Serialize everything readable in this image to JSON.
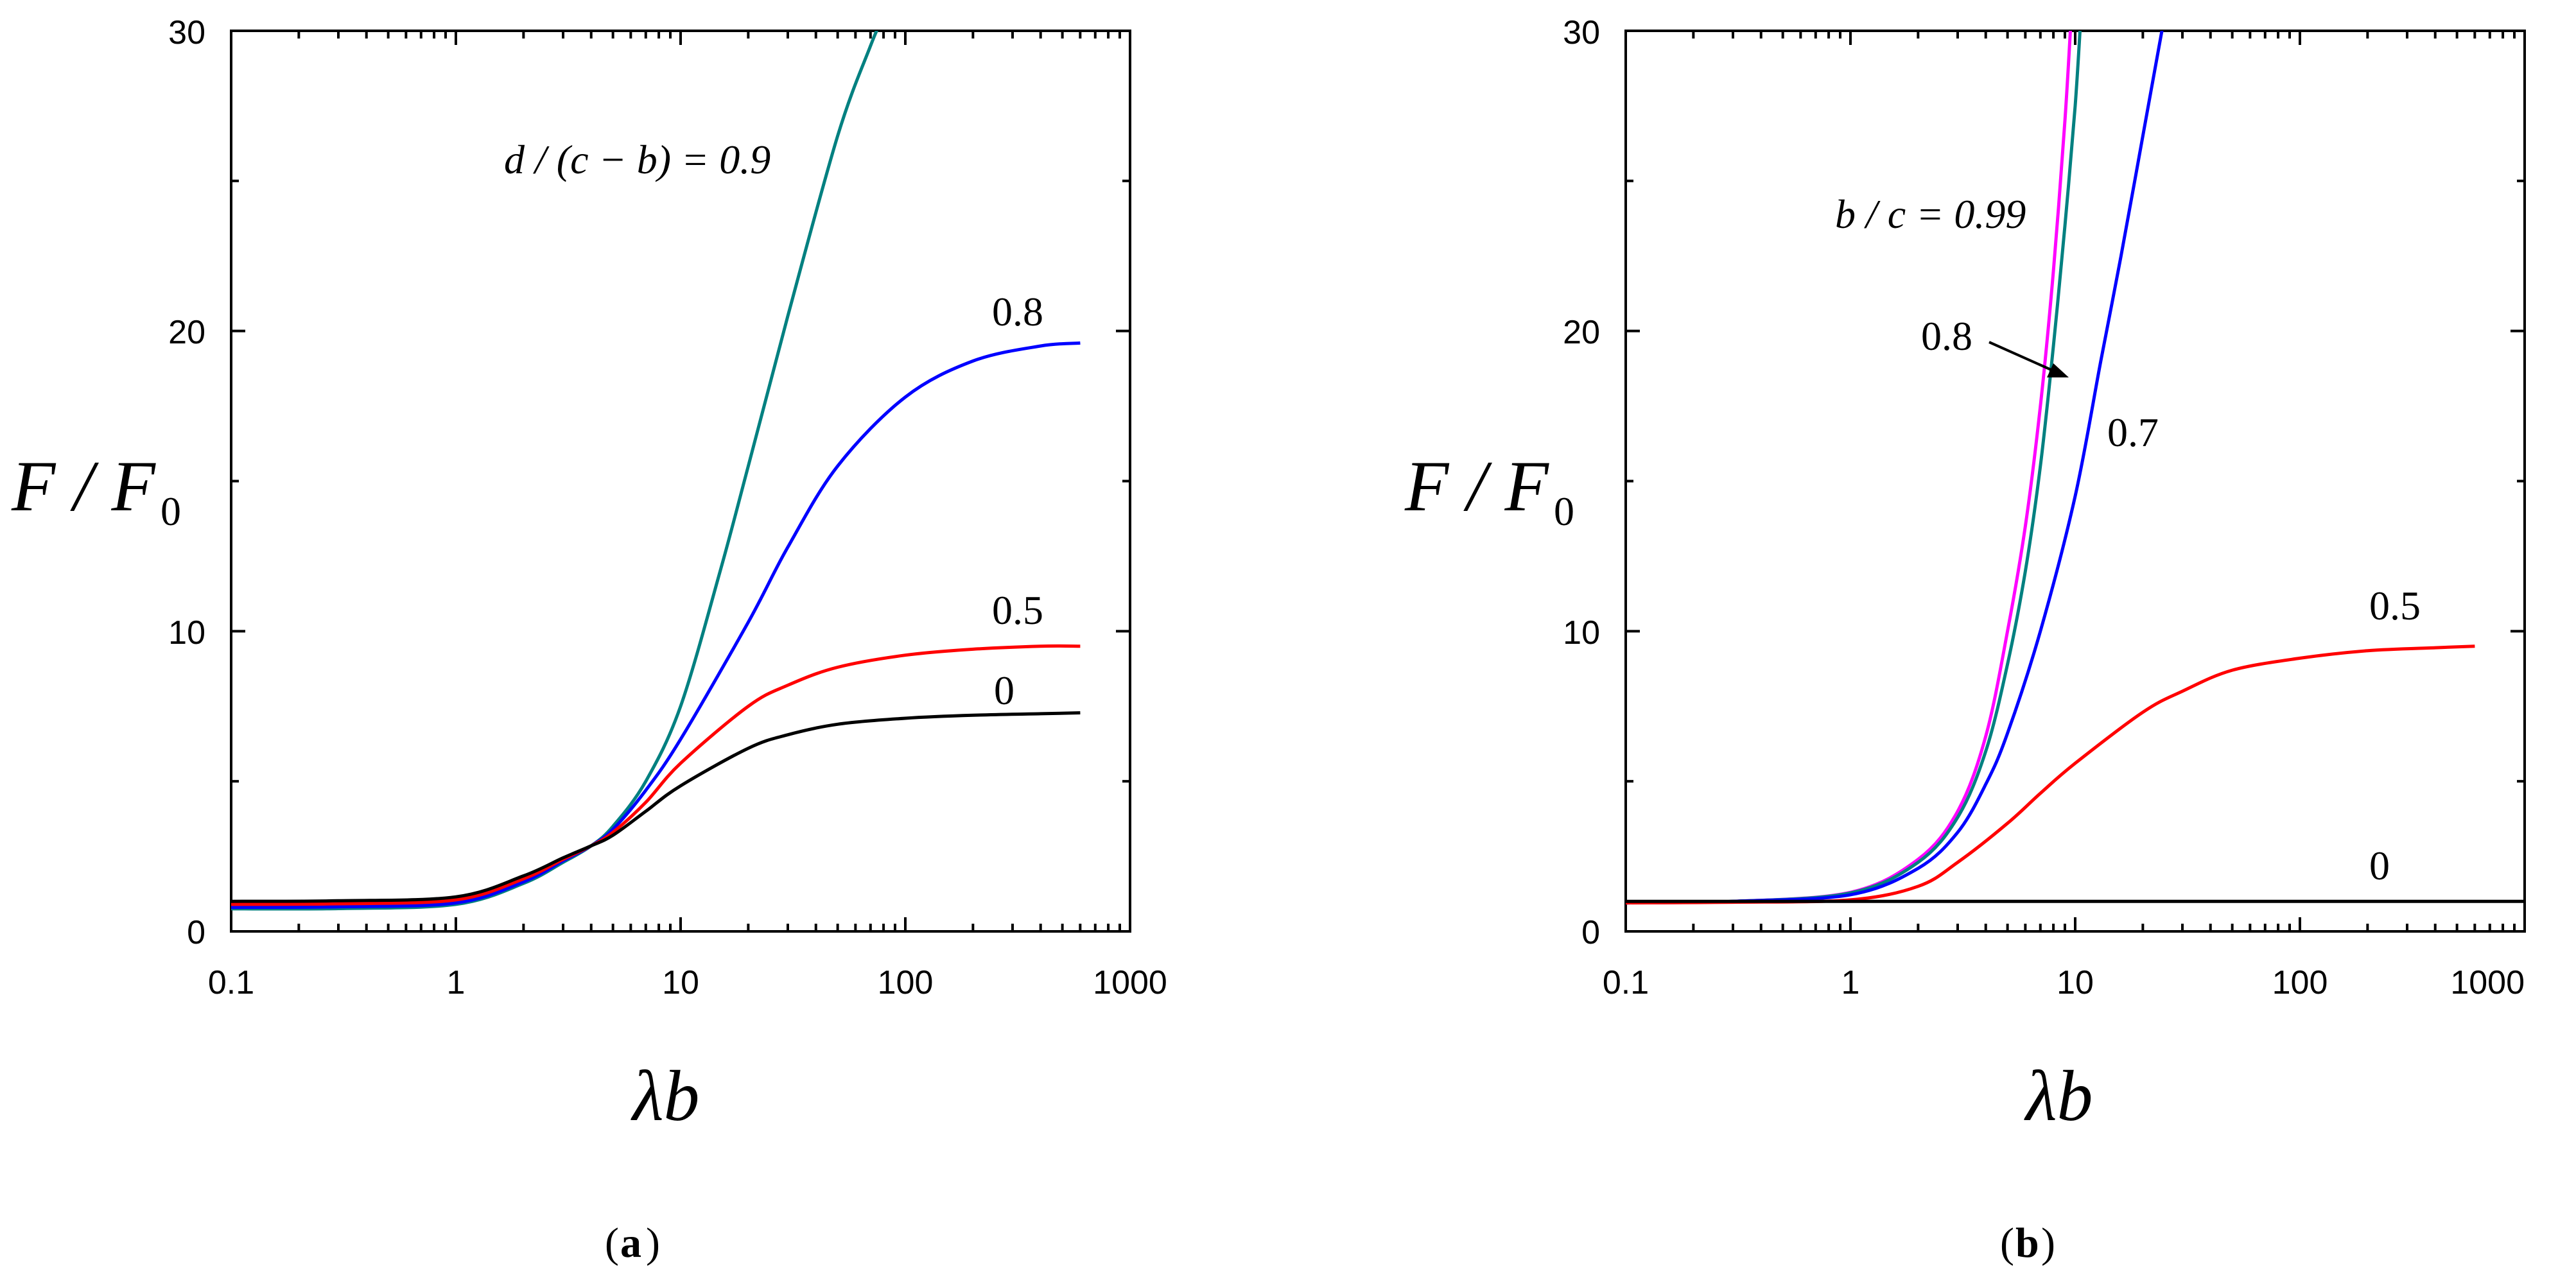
{
  "chart_data": [
    {
      "type": "line",
      "panel": "a",
      "caption_letter": "a",
      "xscale": "log",
      "xlim": [
        0.1,
        1000
      ],
      "ylim": [
        0,
        30
      ],
      "xlabel_main": "λb",
      "ylabel_main": "F / F",
      "ylabel_sub": "0",
      "xticks": [
        "0.1",
        "1",
        "10",
        "100",
        "1000"
      ],
      "yticks": [
        "0",
        "10",
        "20",
        "30"
      ],
      "series": [
        {
          "name": "d / (c − b) = 0.9",
          "label_text": "d / (c − b) = 0.9",
          "color": "#008080",
          "x": [
            0.1,
            0.3,
            1,
            2,
            3,
            4,
            5,
            7,
            10,
            15,
            20,
            30,
            50,
            70,
            80
          ],
          "y": [
            0.75,
            0.76,
            0.9,
            1.6,
            2.3,
            2.85,
            3.5,
            5.0,
            7.5,
            12.0,
            15.5,
            20.5,
            26.5,
            29.5,
            30.5
          ]
        },
        {
          "name": "0.8",
          "label_text": "0.8",
          "color": "#0000ff",
          "x": [
            0.1,
            0.3,
            1,
            2,
            3,
            4,
            5,
            7,
            10,
            20,
            30,
            50,
            100,
            200,
            400,
            600
          ],
          "y": [
            0.8,
            0.82,
            0.95,
            1.65,
            2.35,
            2.85,
            3.4,
            4.7,
            6.4,
            10.3,
            12.8,
            15.5,
            17.8,
            19.0,
            19.5,
            19.6
          ]
        },
        {
          "name": "0.5",
          "label_text": "0.5",
          "color": "#ff0000",
          "x": [
            0.1,
            0.3,
            1,
            2,
            3,
            4,
            5,
            7,
            10,
            20,
            30,
            50,
            100,
            200,
            400,
            600
          ],
          "y": [
            0.9,
            0.92,
            1.05,
            1.75,
            2.4,
            2.85,
            3.3,
            4.3,
            5.6,
            7.5,
            8.2,
            8.8,
            9.2,
            9.4,
            9.5,
            9.5
          ]
        },
        {
          "name": "0",
          "label_text": "0",
          "color": "#000000",
          "x": [
            0.1,
            0.3,
            1,
            2,
            3,
            4,
            5,
            7,
            10,
            20,
            30,
            50,
            100,
            200,
            400,
            600
          ],
          "y": [
            1.0,
            1.02,
            1.15,
            1.85,
            2.45,
            2.85,
            3.2,
            4.0,
            4.85,
            6.1,
            6.55,
            6.9,
            7.1,
            7.2,
            7.25,
            7.28
          ]
        }
      ]
    },
    {
      "type": "line",
      "panel": "b",
      "caption_letter": "b",
      "xscale": "log",
      "xlim": [
        0.1,
        1000
      ],
      "ylim": [
        0,
        30
      ],
      "xlabel_main": "λb",
      "ylabel_main": "F / F",
      "ylabel_sub": "0",
      "xticks": [
        "0.1",
        "1",
        "10",
        "100",
        "1000"
      ],
      "yticks": [
        "0",
        "10",
        "20",
        "30"
      ],
      "series": [
        {
          "name": "b / c = 0.99",
          "label_text": "b / c = 0.99",
          "color": "#ff00ff",
          "x": [
            0.1,
            0.3,
            1,
            2,
            3,
            4,
            5,
            6,
            7,
            8,
            9,
            9.6
          ],
          "y": [
            0.95,
            1.0,
            1.3,
            2.4,
            4.0,
            6.5,
            10.0,
            13.5,
            17.5,
            22.0,
            27.0,
            30.5
          ]
        },
        {
          "name": "0.8",
          "label_text": "0.8",
          "color": "#008080",
          "x": [
            0.1,
            0.3,
            1,
            2,
            3,
            4,
            5,
            6,
            7,
            8,
            9,
            10,
            10.6
          ],
          "y": [
            0.95,
            1.0,
            1.28,
            2.3,
            3.8,
            6.0,
            8.9,
            12.0,
            15.5,
            19.5,
            23.5,
            27.5,
            30.5
          ]
        },
        {
          "name": "0.7",
          "label_text": "0.7",
          "color": "#0000ff",
          "x": [
            0.1,
            0.3,
            1,
            2,
            3,
            4,
            5,
            7,
            10,
            13,
            16,
            20,
            25
          ],
          "y": [
            0.95,
            1.0,
            1.22,
            2.1,
            3.3,
            4.9,
            6.6,
            10.0,
            14.5,
            19.0,
            22.5,
            26.5,
            30.5
          ]
        },
        {
          "name": "0.5",
          "label_text": "0.5",
          "color": "#ff0000",
          "x": [
            0.1,
            0.3,
            1,
            2,
            3,
            5,
            7,
            10,
            20,
            30,
            50,
            100,
            200,
            400,
            600
          ],
          "y": [
            0.95,
            0.97,
            1.05,
            1.5,
            2.3,
            3.6,
            4.6,
            5.6,
            7.3,
            8.0,
            8.7,
            9.1,
            9.35,
            9.45,
            9.5
          ]
        },
        {
          "name": "0",
          "label_text": "0",
          "color": "#000000",
          "x": [
            0.1,
            1000
          ],
          "y": [
            1.0,
            1.0
          ]
        }
      ]
    }
  ]
}
